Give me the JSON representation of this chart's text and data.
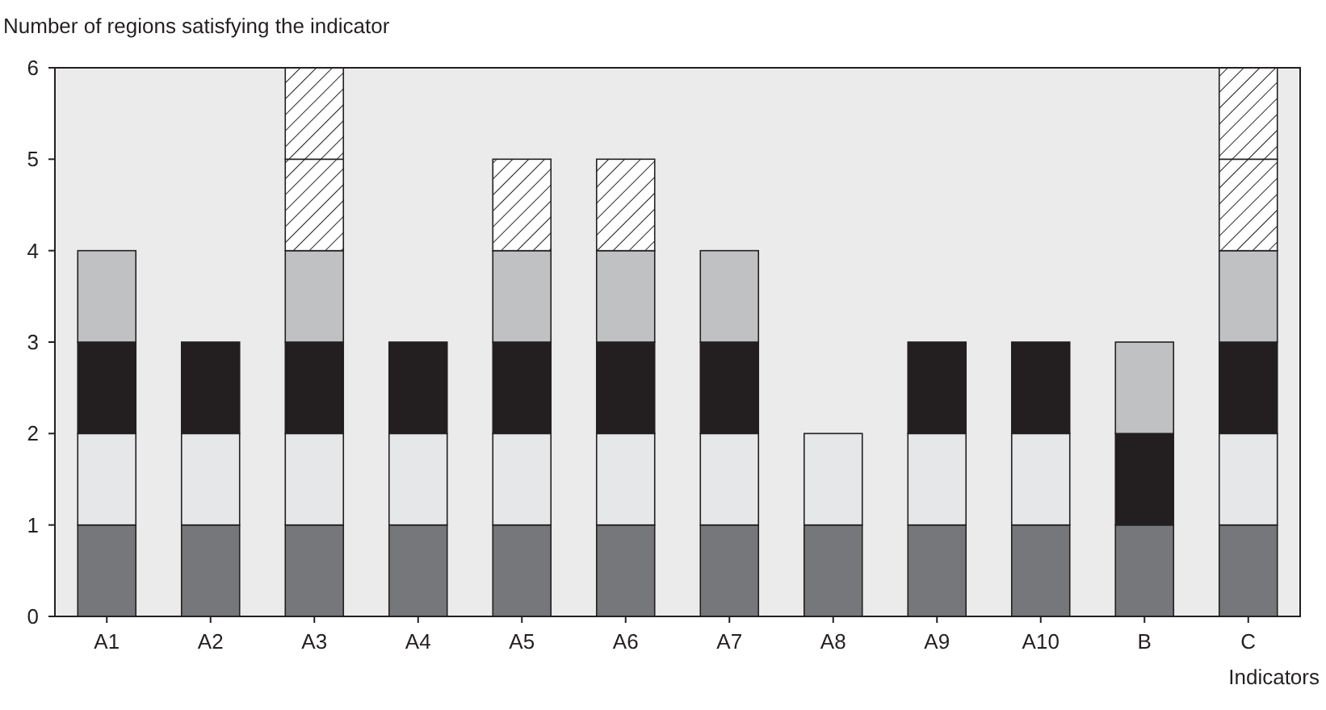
{
  "chart_data": {
    "type": "bar",
    "stacked": true,
    "ylabel": "Number of regions satisfying the indicator",
    "xlabel": "Indicators",
    "categories": [
      "A1",
      "A2",
      "A3",
      "A4",
      "A5",
      "A6",
      "A7",
      "A8",
      "A9",
      "A10",
      "B",
      "C"
    ],
    "ylim": [
      0,
      6
    ],
    "yticks": [
      0,
      1,
      2,
      3,
      4,
      5,
      6
    ],
    "grid": false,
    "series": [
      {
        "color": "#76777a",
        "values": [
          1,
          1,
          1,
          1,
          1,
          1,
          1,
          1,
          1,
          1,
          1,
          1
        ]
      },
      {
        "color": "#e6e7e8",
        "values": [
          1,
          1,
          1,
          1,
          1,
          1,
          1,
          1,
          1,
          1,
          0,
          1
        ]
      },
      {
        "color": "#231f20",
        "values": [
          1,
          1,
          1,
          1,
          1,
          1,
          1,
          0,
          1,
          1,
          1,
          1
        ]
      },
      {
        "color": "#c0c1c3",
        "values": [
          1,
          0,
          1,
          0,
          1,
          1,
          1,
          0,
          0,
          0,
          1,
          1
        ]
      },
      {
        "color": "#231f20",
        "values": [
          0,
          0,
          1,
          0,
          1,
          1,
          0,
          0,
          0,
          0,
          0,
          1
        ]
      },
      {
        "color": "#231f20",
        "values": [
          0,
          0,
          1,
          0,
          0,
          0,
          0,
          0,
          0,
          0,
          0,
          1
        ]
      }
    ]
  }
}
